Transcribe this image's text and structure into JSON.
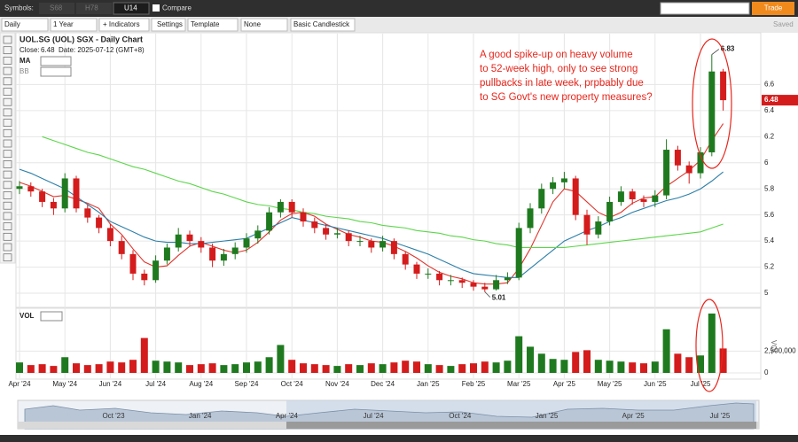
{
  "ui": {
    "symbols_label": "Symbols:",
    "tabs": [
      "S68",
      "H78",
      "U14"
    ],
    "compare": "Compare",
    "trade": "Trade",
    "interval": "Daily",
    "range": "1 Year",
    "indicators": "+ Indicators",
    "settings": "Settings",
    "template": "Template",
    "none": "None",
    "chart_style": "Basic Candlestick",
    "saved": "Saved"
  },
  "chart_data": {
    "type": "candlestick",
    "title": "UOL.SG (UOL) SGX - Daily Chart",
    "close_label": "Close:",
    "date_text": "Date: 2025-07-12 (GMT+8)",
    "ma_label": "MA",
    "bb_label": "BB",
    "vol_label": "VOL",
    "vol_axis_label": "VOL",
    "annotation": [
      "A good spike-up on heavy volume",
      "to 52-week high, only to see strong",
      "pullbacks in late week, prpbably due",
      "to SG Govt's new property measures?"
    ],
    "annotation_color": "#e8261c",
    "up_color": "#1f7a1f",
    "down_color": "#d41c1c",
    "ylim": [
      4.905,
      6.99
    ],
    "yticks": [
      5.0,
      5.2,
      5.4,
      5.6,
      5.8,
      6.0,
      6.2,
      6.4,
      6.6
    ],
    "vol_ylim": [
      0,
      7000000
    ],
    "vol_yticks": [
      0,
      {
        "value": 2500000,
        "label": "2,500,000"
      }
    ],
    "xticks": [
      {
        "value": 0,
        "label": "Apr '24"
      },
      {
        "value": 4,
        "label": "May '24"
      },
      {
        "value": 8,
        "label": "Jun '24"
      },
      {
        "value": 12,
        "label": "Jul '24"
      },
      {
        "value": 16,
        "label": "Aug '24"
      },
      {
        "value": 20,
        "label": "Sep '24"
      },
      {
        "value": 24,
        "label": "Oct '24"
      },
      {
        "value": 28,
        "label": "Nov '24"
      },
      {
        "value": 32,
        "label": "Dec '24"
      },
      {
        "value": 36,
        "label": "Jan '25"
      },
      {
        "value": 40,
        "label": "Feb '25"
      },
      {
        "value": 44,
        "label": "Mar '25"
      },
      {
        "value": 48,
        "label": "Apr '25"
      },
      {
        "value": 52,
        "label": "May '25"
      },
      {
        "value": 56,
        "label": "Jun '25"
      },
      {
        "value": 60,
        "label": "Jul '25"
      }
    ],
    "navigator_ticks": [
      "Oct '23",
      "Jan '24",
      "Apr '24",
      "Jul '24",
      "Oct '24",
      "Jan '25",
      "Apr '25",
      "Jul '25"
    ],
    "ohlc": [
      [
        5.8,
        5.86,
        5.76,
        5.82
      ],
      [
        5.82,
        5.85,
        5.74,
        5.78
      ],
      [
        5.78,
        5.8,
        5.66,
        5.7
      ],
      [
        5.7,
        5.73,
        5.6,
        5.65
      ],
      [
        5.65,
        5.92,
        5.62,
        5.88
      ],
      [
        5.88,
        5.9,
        5.62,
        5.65
      ],
      [
        5.65,
        5.68,
        5.54,
        5.58
      ],
      [
        5.58,
        5.6,
        5.46,
        5.5
      ],
      [
        5.5,
        5.53,
        5.36,
        5.4
      ],
      [
        5.4,
        5.44,
        5.26,
        5.3
      ],
      [
        5.3,
        5.33,
        5.1,
        5.15
      ],
      [
        5.15,
        5.18,
        5.06,
        5.1
      ],
      [
        5.1,
        5.29,
        5.08,
        5.25
      ],
      [
        5.25,
        5.38,
        5.22,
        5.35
      ],
      [
        5.35,
        5.5,
        5.32,
        5.45
      ],
      [
        5.45,
        5.48,
        5.36,
        5.4
      ],
      [
        5.4,
        5.43,
        5.31,
        5.35
      ],
      [
        5.35,
        5.38,
        5.2,
        5.25
      ],
      [
        5.25,
        5.34,
        5.21,
        5.3
      ],
      [
        5.3,
        5.39,
        5.26,
        5.35
      ],
      [
        5.35,
        5.46,
        5.31,
        5.42
      ],
      [
        5.42,
        5.52,
        5.38,
        5.48
      ],
      [
        5.48,
        5.66,
        5.45,
        5.62
      ],
      [
        5.62,
        5.72,
        5.58,
        5.7
      ],
      [
        5.7,
        5.72,
        5.58,
        5.62
      ],
      [
        5.62,
        5.65,
        5.51,
        5.55
      ],
      [
        5.55,
        5.58,
        5.46,
        5.5
      ],
      [
        5.5,
        5.53,
        5.41,
        5.45
      ],
      [
        5.45,
        5.5,
        5.42,
        5.46
      ],
      [
        5.46,
        5.48,
        5.36,
        5.4
      ],
      [
        5.4,
        5.44,
        5.36,
        5.4
      ],
      [
        5.4,
        5.42,
        5.31,
        5.35
      ],
      [
        5.35,
        5.44,
        5.32,
        5.4
      ],
      [
        5.4,
        5.42,
        5.26,
        5.3
      ],
      [
        5.3,
        5.32,
        5.18,
        5.22
      ],
      [
        5.22,
        5.24,
        5.11,
        5.15
      ],
      [
        5.15,
        5.19,
        5.11,
        5.15
      ],
      [
        5.15,
        5.17,
        5.06,
        5.1
      ],
      [
        5.1,
        5.14,
        5.06,
        5.1
      ],
      [
        5.1,
        5.12,
        5.04,
        5.08
      ],
      [
        5.08,
        5.1,
        5.02,
        5.05
      ],
      [
        5.05,
        5.08,
        5.01,
        5.03
      ],
      [
        5.03,
        5.14,
        5.02,
        5.1
      ],
      [
        5.1,
        5.16,
        5.07,
        5.12
      ],
      [
        5.12,
        5.54,
        5.1,
        5.5
      ],
      [
        5.5,
        5.69,
        5.46,
        5.65
      ],
      [
        5.65,
        5.84,
        5.61,
        5.8
      ],
      [
        5.8,
        5.89,
        5.76,
        5.85
      ],
      [
        5.85,
        5.93,
        5.8,
        5.88
      ],
      [
        5.88,
        5.9,
        5.56,
        5.6
      ],
      [
        5.6,
        5.64,
        5.37,
        5.45
      ],
      [
        5.45,
        5.59,
        5.42,
        5.55
      ],
      [
        5.55,
        5.74,
        5.52,
        5.7
      ],
      [
        5.7,
        5.82,
        5.67,
        5.78
      ],
      [
        5.78,
        5.8,
        5.68,
        5.72
      ],
      [
        5.72,
        5.75,
        5.66,
        5.7
      ],
      [
        5.7,
        5.79,
        5.66,
        5.75
      ],
      [
        5.75,
        6.18,
        5.72,
        6.1
      ],
      [
        6.1,
        6.13,
        5.94,
        5.98
      ],
      [
        5.98,
        6.01,
        5.84,
        5.92
      ],
      [
        5.92,
        6.12,
        5.88,
        6.08
      ],
      [
        6.08,
        6.83,
        6.05,
        6.7
      ],
      [
        6.7,
        6.72,
        6.4,
        6.48
      ]
    ],
    "volume": [
      1200000,
      900000,
      1000000,
      800000,
      1800000,
      1100000,
      900000,
      1000000,
      1300000,
      1200000,
      1500000,
      4000000,
      1400000,
      1300000,
      1200000,
      900000,
      1000000,
      1100000,
      900000,
      1000000,
      1200000,
      1300000,
      1800000,
      3200000,
      1500000,
      1100000,
      1000000,
      900000,
      800000,
      1000000,
      900000,
      1100000,
      1000000,
      1200000,
      1400000,
      1300000,
      1000000,
      900000,
      800000,
      1000000,
      1100000,
      1300000,
      1200000,
      1400000,
      4200000,
      3000000,
      2200000,
      1600000,
      1500000,
      2400000,
      2600000,
      1500000,
      1400000,
      1300000,
      1200000,
      1100000,
      1300000,
      5000000,
      2200000,
      1800000,
      2000000,
      6800000,
      2800000
    ],
    "ma_series": [
      {
        "color": "#e0342c",
        "values": [
          5.85,
          5.82,
          5.78,
          5.74,
          5.75,
          5.72,
          5.69,
          5.65,
          5.53,
          5.45,
          5.34,
          5.24,
          5.2,
          5.21,
          5.29,
          5.36,
          5.39,
          5.36,
          5.33,
          5.31,
          5.33,
          5.39,
          5.47,
          5.56,
          5.61,
          5.62,
          5.59,
          5.53,
          5.49,
          5.45,
          5.43,
          5.4,
          5.39,
          5.36,
          5.32,
          5.27,
          5.21,
          5.16,
          5.13,
          5.11,
          5.08,
          5.07,
          5.07,
          5.08,
          5.19,
          5.34,
          5.52,
          5.7,
          5.8,
          5.78,
          5.7,
          5.62,
          5.58,
          5.62,
          5.69,
          5.73,
          5.74,
          5.82,
          5.88,
          5.94,
          6.02,
          6.17,
          6.3
        ]
      },
      {
        "color": "#2b7fa8",
        "values": [
          5.95,
          5.92,
          5.88,
          5.84,
          5.8,
          5.74,
          5.68,
          5.62,
          5.55,
          5.51,
          5.47,
          5.43,
          5.4,
          5.39,
          5.39,
          5.38,
          5.38,
          5.39,
          5.4,
          5.41,
          5.42,
          5.46,
          5.5,
          5.54,
          5.58,
          5.56,
          5.54,
          5.52,
          5.5,
          5.48,
          5.46,
          5.44,
          5.42,
          5.39,
          5.36,
          5.33,
          5.3,
          5.26,
          5.22,
          5.18,
          5.15,
          5.14,
          5.13,
          5.12,
          5.12,
          5.19,
          5.26,
          5.33,
          5.4,
          5.44,
          5.48,
          5.51,
          5.55,
          5.58,
          5.62,
          5.65,
          5.68,
          5.71,
          5.73,
          5.76,
          5.8,
          5.86,
          5.93
        ]
      },
      {
        "color": "#5cd64a",
        "values": [
          null,
          null,
          6.2,
          6.17,
          6.14,
          6.11,
          6.08,
          6.06,
          6.03,
          6.0,
          5.97,
          5.95,
          5.92,
          5.89,
          5.86,
          5.84,
          5.81,
          5.78,
          5.76,
          5.73,
          5.7,
          5.68,
          5.67,
          5.65,
          5.64,
          5.62,
          5.61,
          5.59,
          5.58,
          5.57,
          5.55,
          5.54,
          5.52,
          5.51,
          5.5,
          5.48,
          5.47,
          5.46,
          5.44,
          5.43,
          5.41,
          5.4,
          5.38,
          5.37,
          5.35,
          5.35,
          5.35,
          5.35,
          5.35,
          5.36,
          5.37,
          5.38,
          5.39,
          5.4,
          5.41,
          5.42,
          5.43,
          5.44,
          5.45,
          5.46,
          5.47,
          5.5,
          5.53
        ]
      }
    ]
  }
}
